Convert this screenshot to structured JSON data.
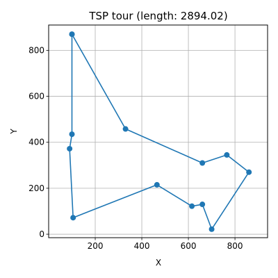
{
  "chart_data": {
    "type": "line",
    "title": "TSP tour (length: 2894.02)",
    "xlabel": "X",
    "ylabel": "Y",
    "xlim": [
      0,
      940
    ],
    "ylim": [
      -15,
      910
    ],
    "xticks": [
      200,
      400,
      600,
      800
    ],
    "yticks": [
      0,
      200,
      400,
      600,
      800
    ],
    "grid": true,
    "color": "#1f77b4",
    "series": [
      {
        "x": [
          100,
          330,
          660,
          765,
          860,
          700,
          660,
          615,
          465,
          105,
          90,
          100,
          100
        ],
        "y": [
          870,
          458,
          310,
          345,
          270,
          22,
          130,
          122,
          215,
          72,
          372,
          435,
          870
        ]
      }
    ]
  }
}
